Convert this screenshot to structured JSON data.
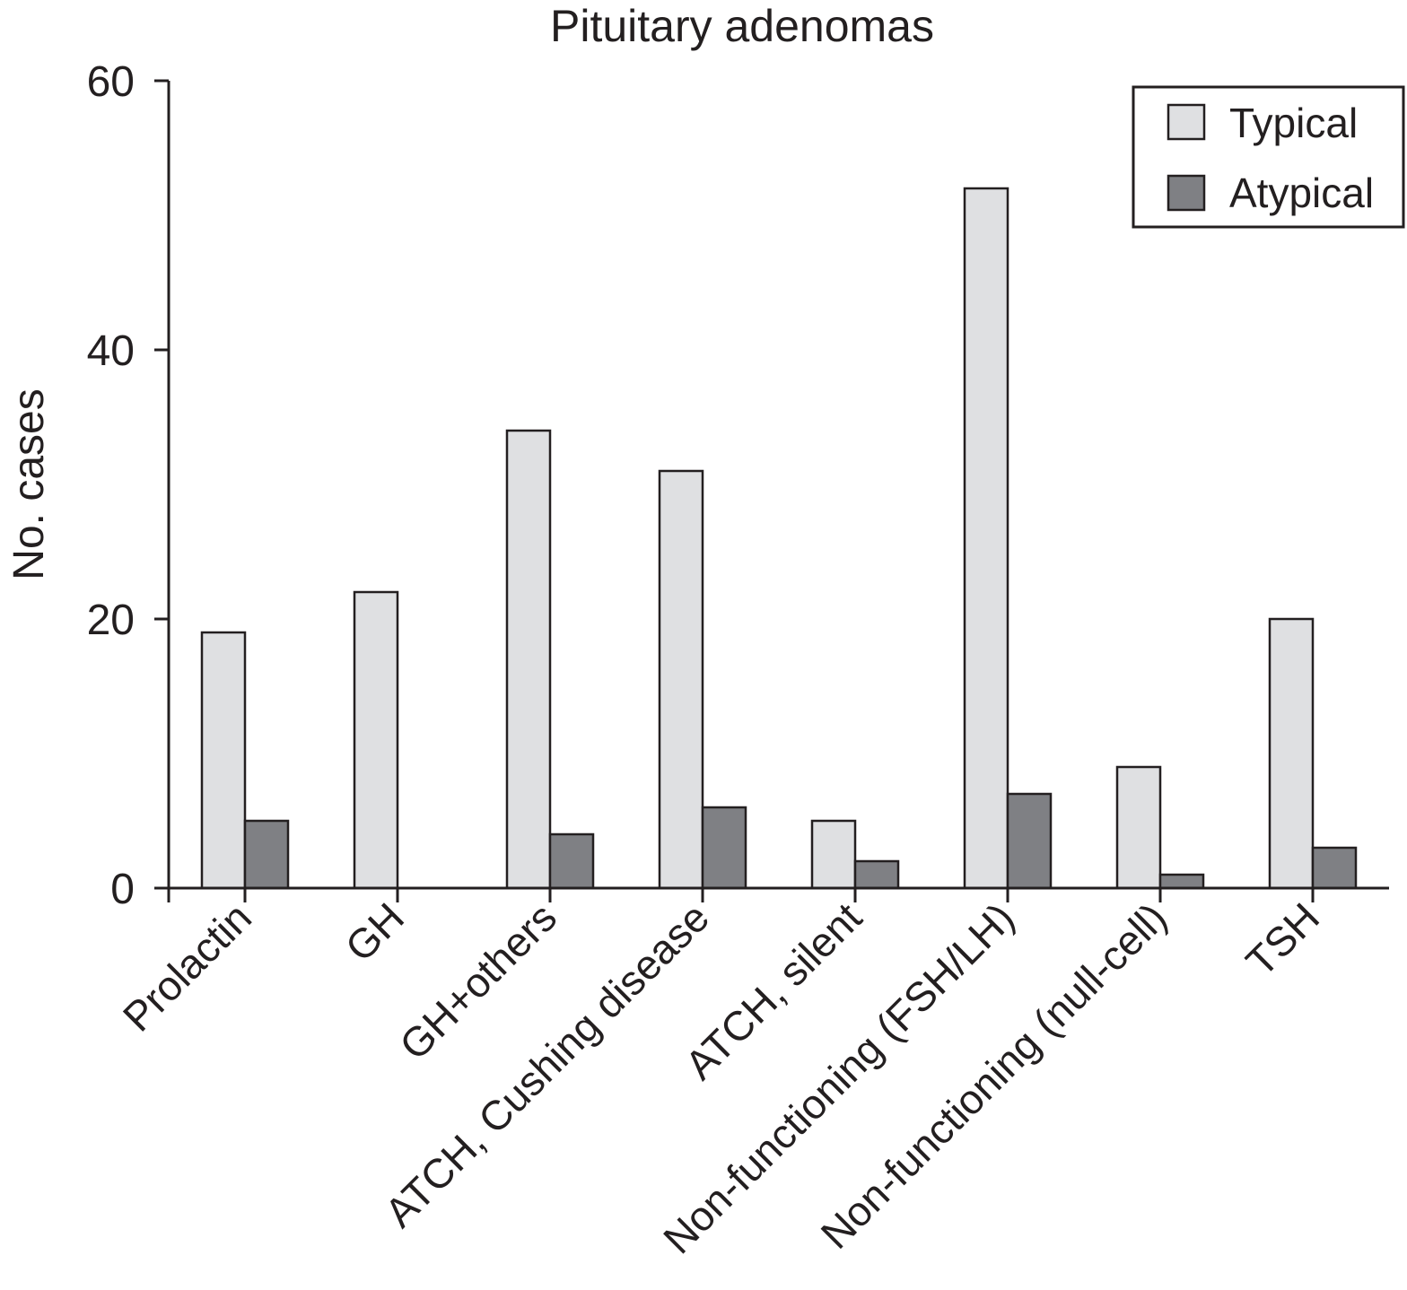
{
  "chart_data": {
    "type": "bar",
    "title": "Pituitary adenomas",
    "xlabel": "",
    "ylabel": "No. cases",
    "ylim": [
      0,
      60
    ],
    "yticks": [
      0,
      20,
      40,
      60
    ],
    "grid": false,
    "legend_position": "top-right",
    "categories": [
      "Prolactin",
      "GH",
      "GH+others",
      "ATCH, Cushing disease",
      "ATCH, silent",
      "Non-functioning (FSH/LH)",
      "Non-functioning (null-cell)",
      "TSH"
    ],
    "series": [
      {
        "name": "Typical",
        "color": "#dfe0e2",
        "values": [
          19,
          22,
          34,
          31,
          5,
          52,
          9,
          20
        ]
      },
      {
        "name": "Atypical",
        "color": "#7f8084",
        "values": [
          5,
          0,
          4,
          6,
          2,
          7,
          1,
          3
        ]
      }
    ]
  }
}
